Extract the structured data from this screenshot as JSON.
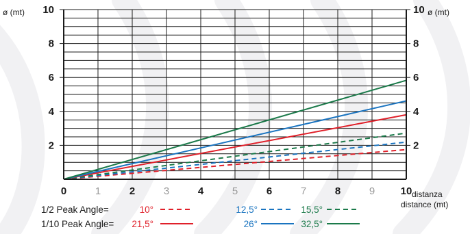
{
  "chart_data": {
    "type": "line",
    "x_axis": {
      "range": [
        0,
        10
      ],
      "ticks": [
        "0",
        "1",
        "2",
        "3",
        "4",
        "5",
        "6",
        "7",
        "8",
        "9",
        "10"
      ],
      "bold_ticks": [
        "0",
        "2",
        "4",
        "6",
        "8",
        "10"
      ],
      "label_line1": "distanza",
      "label_line2": "distance (mt)"
    },
    "y_axis": {
      "range": [
        0,
        10
      ],
      "ticks": [
        "2",
        "4",
        "6",
        "8",
        "10"
      ],
      "left_label": "ø (mt)",
      "right_label": "ø (mt)"
    },
    "grid": true,
    "series": [
      {
        "name": "10°",
        "group": "1/2 Peak Angle",
        "style": "dashed",
        "color": "#e0202a",
        "x": [
          0,
          10
        ],
        "y": [
          0,
          1.75
        ]
      },
      {
        "name": "12,5°",
        "group": "1/2 Peak Angle",
        "style": "dashed",
        "color": "#1a74c0",
        "x": [
          0,
          10
        ],
        "y": [
          0,
          2.19
        ]
      },
      {
        "name": "15,5°",
        "group": "1/2 Peak Angle",
        "style": "dashed",
        "color": "#1b7a4a",
        "x": [
          0,
          10
        ],
        "y": [
          0,
          2.72
        ]
      },
      {
        "name": "21,5°",
        "group": "1/10 Peak Angle",
        "style": "solid",
        "color": "#e0202a",
        "x": [
          0,
          10
        ],
        "y": [
          0,
          3.8
        ]
      },
      {
        "name": "26°",
        "group": "1/10 Peak Angle",
        "style": "solid",
        "color": "#1a74c0",
        "x": [
          0,
          10
        ],
        "y": [
          0,
          4.62
        ]
      },
      {
        "name": "32,5°",
        "group": "1/10 Peak Angle",
        "style": "solid",
        "color": "#1b7a4a",
        "x": [
          0,
          10
        ],
        "y": [
          0,
          5.83
        ]
      }
    ],
    "legend": {
      "row1_label": "1/2 Peak Angle=",
      "row2_label": "1/10 Peak Angle="
    }
  }
}
